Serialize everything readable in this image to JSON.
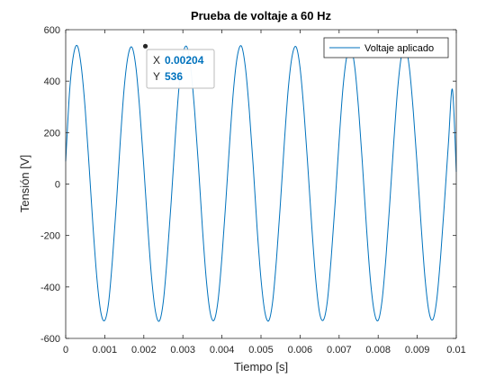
{
  "chart_data": {
    "type": "line",
    "title": "Prueba de voltaje a 60 Hz",
    "xlabel": "Tiempo [s]",
    "ylabel": "Tensión [V]",
    "xlim": [
      0,
      0.01
    ],
    "ylim": [
      -600,
      600
    ],
    "xticks": [
      "0",
      "0.001",
      "0.002",
      "0.003",
      "0.004",
      "0.005",
      "0.006",
      "0.007",
      "0.008",
      "0.009",
      "0.01"
    ],
    "yticks": [
      "-600",
      "-400",
      "-200",
      "0",
      "200",
      "400",
      "600"
    ],
    "grid": false,
    "legend_position": "top-right",
    "series": [
      {
        "name": "Voltaje aplicado",
        "color": "#0072bd",
        "amplitude": 536,
        "frequency_hz": 60,
        "x": [
          0,
          0.0001,
          0.0002,
          0.0003,
          0.0004,
          0.0005,
          0.0006,
          0.0007,
          0.0008,
          0.0009,
          0.001,
          0.0011,
          0.0012,
          0.0013,
          0.0014,
          0.0015,
          0.0016,
          0.0017,
          0.0018,
          0.0019,
          0.002,
          0.00204,
          0.0021,
          0.0022,
          0.0023,
          0.0024,
          0.0025,
          0.0026,
          0.0027,
          0.0028,
          0.0029,
          0.003,
          0.0031,
          0.0032,
          0.0033,
          0.0034,
          0.0035,
          0.0036,
          0.0037,
          0.0038,
          0.0039,
          0.004,
          0.0041,
          0.0042,
          0.0043,
          0.0044,
          0.0045,
          0.0046,
          0.0047,
          0.0048,
          0.0049,
          0.005,
          0.0051,
          0.0052,
          0.0053,
          0.0054,
          0.0055,
          0.0056,
          0.0057,
          0.0058,
          0.0059,
          0.006,
          0.0061,
          0.0062,
          0.0063,
          0.0064,
          0.0065,
          0.0066,
          0.0067,
          0.0068,
          0.0069,
          0.007,
          0.0071,
          0.0072,
          0.0073,
          0.0074,
          0.0075,
          0.0076,
          0.0077,
          0.0078,
          0.0079,
          0.008,
          0.0081,
          0.0082,
          0.0083,
          0.0084,
          0.0085,
          0.0086,
          0.0087,
          0.0088,
          0.0089,
          0.009,
          0.0091,
          0.0092,
          0.0093,
          0.0094,
          0.0095,
          0.0096,
          0.0097,
          0.0098,
          0.0099,
          0.01
        ],
        "y": [
          88,
          361,
          502,
          537,
          455,
          290,
          68,
          -167,
          -368,
          -499,
          -530,
          -459,
          -287,
          -72,
          172,
          378,
          501,
          531,
          451,
          281,
          66,
          536,
          -164,
          -366,
          -497,
          -532,
          -456,
          -283,
          -70,
          168,
          375,
          503,
          534,
          452,
          286,
          69,
          -170,
          -372,
          -500,
          -529,
          -453,
          -284,
          -67,
          166,
          373,
          502,
          536,
          454,
          287,
          71,
          -171,
          -370,
          -498,
          -531,
          -455,
          -285,
          -68,
          167,
          374,
          500,
          533,
          452,
          283,
          66,
          -165,
          -369,
          -501,
          -528,
          -454,
          -282,
          -69,
          169,
          376,
          499,
          532,
          455,
          289,
          70,
          -168,
          -371,
          -497,
          -530,
          -452,
          -283,
          -66,
          165,
          372,
          502,
          535,
          450,
          281,
          67,
          -163,
          -367,
          -496,
          -527,
          -449,
          -279,
          -64,
          162,
          368,
          47
        ]
      }
    ],
    "datatip": {
      "x_label": "X",
      "x_value": "0.00204",
      "y_label": "Y",
      "y_value": "536",
      "at_x": 0.00204,
      "at_y": 536
    }
  }
}
